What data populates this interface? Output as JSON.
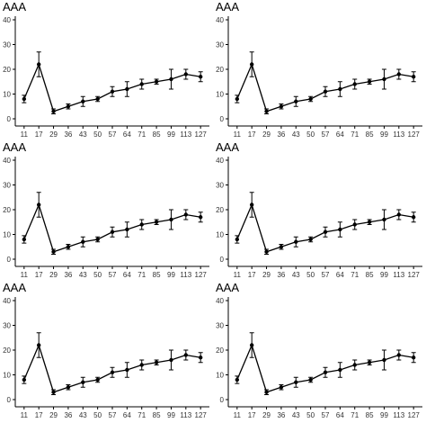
{
  "chart_data": [
    {
      "type": "line",
      "title": "AAA",
      "x": [
        "11",
        "17",
        "29",
        "36",
        "43",
        "50",
        "57",
        "64",
        "71",
        "85",
        "99",
        "113",
        "127"
      ],
      "values": [
        8,
        22,
        3,
        5,
        7,
        8,
        11,
        12,
        14,
        15,
        16,
        18,
        17
      ],
      "errors": [
        1.5,
        5,
        1,
        1,
        2,
        1,
        2,
        3,
        2,
        1,
        4,
        2,
        2
      ],
      "ylim": [
        0,
        40
      ],
      "yticks": [
        0,
        10,
        20,
        30,
        40
      ],
      "xlabel": "",
      "ylabel": "",
      "grid": false
    },
    {
      "type": "line",
      "title": "AAA",
      "x": [
        "11",
        "17",
        "29",
        "36",
        "43",
        "50",
        "57",
        "64",
        "71",
        "85",
        "99",
        "113",
        "127"
      ],
      "values": [
        8,
        22,
        3,
        5,
        7,
        8,
        11,
        12,
        14,
        15,
        16,
        18,
        17
      ],
      "errors": [
        1.5,
        5,
        1,
        1,
        2,
        1,
        2,
        3,
        2,
        1,
        4,
        2,
        2
      ],
      "ylim": [
        0,
        40
      ],
      "yticks": [
        0,
        10,
        20,
        30,
        40
      ],
      "xlabel": "",
      "ylabel": "",
      "grid": false
    },
    {
      "type": "line",
      "title": "AAA",
      "x": [
        "11",
        "17",
        "29",
        "36",
        "43",
        "50",
        "57",
        "64",
        "71",
        "85",
        "99",
        "113",
        "127"
      ],
      "values": [
        8,
        22,
        3,
        5,
        7,
        8,
        11,
        12,
        14,
        15,
        16,
        18,
        17
      ],
      "errors": [
        1.5,
        5,
        1,
        1,
        2,
        1,
        2,
        3,
        2,
        1,
        4,
        2,
        2
      ],
      "ylim": [
        0,
        40
      ],
      "yticks": [
        0,
        10,
        20,
        30,
        40
      ],
      "xlabel": "",
      "ylabel": "",
      "grid": false
    },
    {
      "type": "line",
      "title": "AAA",
      "x": [
        "11",
        "17",
        "29",
        "36",
        "43",
        "50",
        "57",
        "64",
        "71",
        "85",
        "99",
        "113",
        "127"
      ],
      "values": [
        8,
        22,
        3,
        5,
        7,
        8,
        11,
        12,
        14,
        15,
        16,
        18,
        17
      ],
      "errors": [
        1.5,
        5,
        1,
        1,
        2,
        1,
        2,
        3,
        2,
        1,
        4,
        2,
        2
      ],
      "ylim": [
        0,
        40
      ],
      "yticks": [
        0,
        10,
        20,
        30,
        40
      ],
      "xlabel": "",
      "ylabel": "",
      "grid": false
    },
    {
      "type": "line",
      "title": "AAA",
      "x": [
        "11",
        "17",
        "29",
        "36",
        "43",
        "50",
        "57",
        "64",
        "71",
        "85",
        "99",
        "113",
        "127"
      ],
      "values": [
        8,
        22,
        3,
        5,
        7,
        8,
        11,
        12,
        14,
        15,
        16,
        18,
        17
      ],
      "errors": [
        1.5,
        5,
        1,
        1,
        2,
        1,
        2,
        3,
        2,
        1,
        4,
        2,
        2
      ],
      "ylim": [
        0,
        40
      ],
      "yticks": [
        0,
        10,
        20,
        30,
        40
      ],
      "xlabel": "",
      "ylabel": "",
      "grid": false
    },
    {
      "type": "line",
      "title": "AAA",
      "x": [
        "11",
        "17",
        "29",
        "36",
        "43",
        "50",
        "57",
        "64",
        "71",
        "85",
        "99",
        "113",
        "127"
      ],
      "values": [
        8,
        22,
        3,
        5,
        7,
        8,
        11,
        12,
        14,
        15,
        16,
        18,
        17
      ],
      "errors": [
        1.5,
        5,
        1,
        1,
        2,
        1,
        2,
        3,
        2,
        1,
        4,
        2,
        2
      ],
      "ylim": [
        0,
        40
      ],
      "yticks": [
        0,
        10,
        20,
        30,
        40
      ],
      "xlabel": "",
      "ylabel": "",
      "grid": false
    }
  ],
  "colors": {
    "line": "#000000",
    "axis": "#000000",
    "tick_label": "#333333",
    "background": "#ffffff"
  }
}
